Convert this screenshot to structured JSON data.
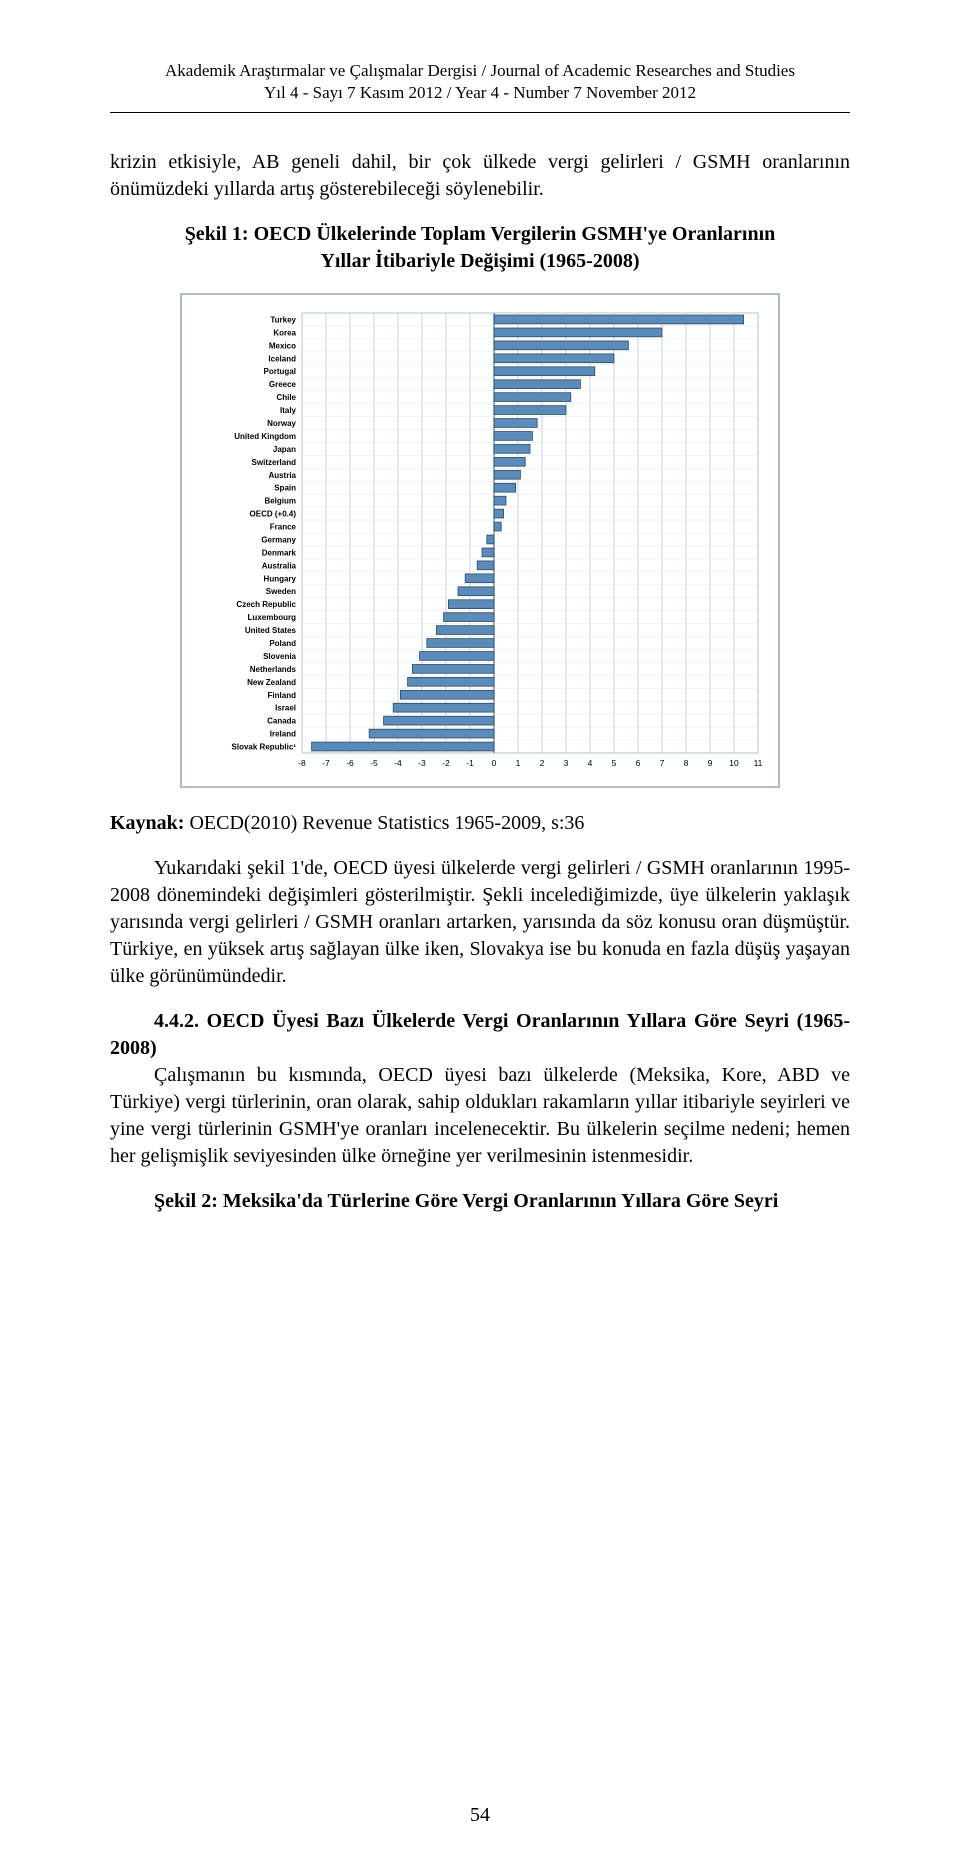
{
  "header": {
    "line1": "Akademik Araştırmalar ve Çalışmalar Dergisi  / Journal of Academic Researches and Studies",
    "line2": "Yıl 4 - Sayı 7  Kasım 2012  /  Year 4 - Number 7  November 2012"
  },
  "para1": "krizin etkisiyle,   AB geneli dahil, bir çok ülkede vergi gelirleri / GSMH oranlarının önümüzdeki yıllarda artış gösterebileceği söylenebilir.",
  "figure1_title_line1": "Şekil 1: OECD Ülkelerinde Toplam Vergilerin GSMH'ye Oranlarının",
  "figure1_title_line2": "Yıllar İtibariyle Değişimi (1965-2008)",
  "kaynak": "Kaynak: OECD(2010) Revenue Statistics 1965-2009, s:36",
  "para2": "Yukarıdaki şekil 1'de, OECD üyesi ülkelerde vergi gelirleri / GSMH oranlarının 1995- 2008 dönemindeki değişimleri gösterilmiştir. Şekli incelediğimizde, üye ülkelerin yaklaşık yarısında vergi gelirleri / GSMH oranları artarken, yarısında da söz konusu oran düşmüştür. Türkiye, en yüksek artış sağlayan ülke iken, Slovakya ise bu konuda en fazla düşüş yaşayan ülke görünümündedir.",
  "section_442_head": "4.4.2. OECD Üyesi Bazı Ülkelerde Vergi Oranlarının Yıllara Göre Seyri (1965-2008)",
  "para3": "Çalışmanın bu kısmında, OECD üyesi bazı ülkelerde (Meksika, Kore, ABD ve Türkiye) vergi türlerinin, oran olarak, sahip oldukları rakamların yıllar itibariyle seyirleri ve yine vergi türlerinin GSMH'ye oranları incelenecektir. Bu ülkelerin seçilme nedeni; hemen her gelişmişlik seviyesinden ülke örneğine yer verilmesinin istenmesidir.",
  "figure2_title": "Şekil 2: Meksika'da Türlerine Göre Vergi Oranlarının Yıllara Göre Seyri",
  "page_number": "54",
  "chart": {
    "type": "bar-horizontal-diverging",
    "background_color": "#fdfefe",
    "plot_bg_color": "#fdfefe",
    "grid_color": "#b9c6cf",
    "bar_fill": "#5b8bb8",
    "bar_stroke": "#2e4a66",
    "x_axis": {
      "min": -8,
      "max": 11,
      "ticks": [
        -8,
        -7,
        -6,
        -5,
        -4,
        -3,
        -2,
        -1,
        0,
        1,
        2,
        3,
        4,
        5,
        6,
        7,
        8,
        9,
        10,
        11
      ],
      "tick_fontsize": 8.5
    },
    "label_fontsize": 8,
    "categories": [
      {
        "label": "Turkey",
        "value": 10.4
      },
      {
        "label": "Korea",
        "value": 7.0
      },
      {
        "label": "Mexico",
        "value": 5.6
      },
      {
        "label": "Iceland",
        "value": 5.0
      },
      {
        "label": "Portugal",
        "value": 4.2
      },
      {
        "label": "Greece",
        "value": 3.6
      },
      {
        "label": "Chile",
        "value": 3.2
      },
      {
        "label": "Italy",
        "value": 3.0
      },
      {
        "label": "Norway",
        "value": 1.8
      },
      {
        "label": "United Kingdom",
        "value": 1.6
      },
      {
        "label": "Japan",
        "value": 1.5
      },
      {
        "label": "Switzerland",
        "value": 1.3
      },
      {
        "label": "Austria",
        "value": 1.1
      },
      {
        "label": "Spain",
        "value": 0.9
      },
      {
        "label": "Belgium",
        "value": 0.5
      },
      {
        "label": "OECD (+0.4)",
        "value": 0.4
      },
      {
        "label": "France",
        "value": 0.3
      },
      {
        "label": "Germany",
        "value": -0.3
      },
      {
        "label": "Denmark",
        "value": -0.5
      },
      {
        "label": "Australia",
        "value": -0.7
      },
      {
        "label": "Hungary",
        "value": -1.2
      },
      {
        "label": "Sweden",
        "value": -1.5
      },
      {
        "label": "Czech Republic",
        "value": -1.9
      },
      {
        "label": "Luxembourg",
        "value": -2.1
      },
      {
        "label": "United States",
        "value": -2.4
      },
      {
        "label": "Poland",
        "value": -2.8
      },
      {
        "label": "Slovenia",
        "value": -3.1
      },
      {
        "label": "Netherlands",
        "value": -3.4
      },
      {
        "label": "New Zealand",
        "value": -3.6
      },
      {
        "label": "Finland",
        "value": -3.9
      },
      {
        "label": "Israel",
        "value": -4.2
      },
      {
        "label": "Canada",
        "value": -4.6
      },
      {
        "label": "Ireland",
        "value": -5.2
      },
      {
        "label": "Slovak Republic¹",
        "value": -7.6
      }
    ]
  }
}
